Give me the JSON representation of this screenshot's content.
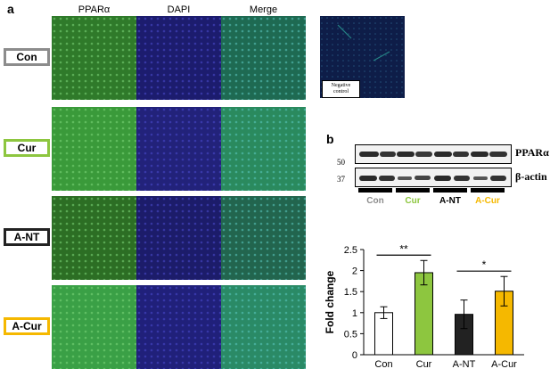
{
  "panel_a": {
    "letter": "a",
    "columns": [
      "PPARα",
      "DAPI",
      "Merge"
    ],
    "rows": [
      {
        "label": "Con",
        "color": "#8c8c8c",
        "ppar": "#2f7a2a",
        "dapi": "#1c1c6e",
        "merge": "#1e6a52"
      },
      {
        "label": "Cur",
        "color": "#8dc63f",
        "ppar": "#3a9a3a",
        "dapi": "#22227a",
        "merge": "#2a8a5e"
      },
      {
        "label": "A-NT",
        "color": "#222222",
        "ppar": "#2c6e24",
        "dapi": "#1c1c6a",
        "merge": "#22654e"
      },
      {
        "label": "A-Cur",
        "color": "#f5b800",
        "ppar": "#3aa046",
        "dapi": "#20207a",
        "merge": "#2a8a66"
      }
    ],
    "negative_control": {
      "label_line1": "Negative",
      "label_line2": "control",
      "color": "#10204a"
    }
  },
  "panel_b": {
    "letter": "b",
    "blot": {
      "markers": [
        "50",
        "37"
      ],
      "proteins": [
        "PPARα",
        "β-actin"
      ],
      "lanes": [
        {
          "label": "Con",
          "color": "#8c8c8c"
        },
        {
          "label": "Cur",
          "color": "#8dc63f"
        },
        {
          "label": "A-NT",
          "color": "#000000"
        },
        {
          "label": "A-Cur",
          "color": "#f5b800"
        }
      ]
    },
    "significance": [
      "**",
      "*"
    ]
  },
  "chart_data": {
    "type": "bar",
    "categories": [
      "Con",
      "Cur",
      "A-NT",
      "A-Cur"
    ],
    "values": [
      1.0,
      1.95,
      0.96,
      1.51
    ],
    "errors": [
      0.14,
      0.29,
      0.34,
      0.35
    ],
    "colors": [
      "#ffffff",
      "#8dc63f",
      "#222222",
      "#f5b800"
    ],
    "ylabel": "Fold change",
    "xlabel": "",
    "ylim": [
      0,
      2.5
    ],
    "yticks": [
      "0",
      "0.5",
      "1",
      "1.5",
      "2",
      "2.5"
    ],
    "grid": false,
    "annotations": [
      {
        "text": "**",
        "from": "Con",
        "to": "Cur"
      },
      {
        "text": "*",
        "from": "A-NT",
        "to": "A-Cur"
      }
    ]
  }
}
